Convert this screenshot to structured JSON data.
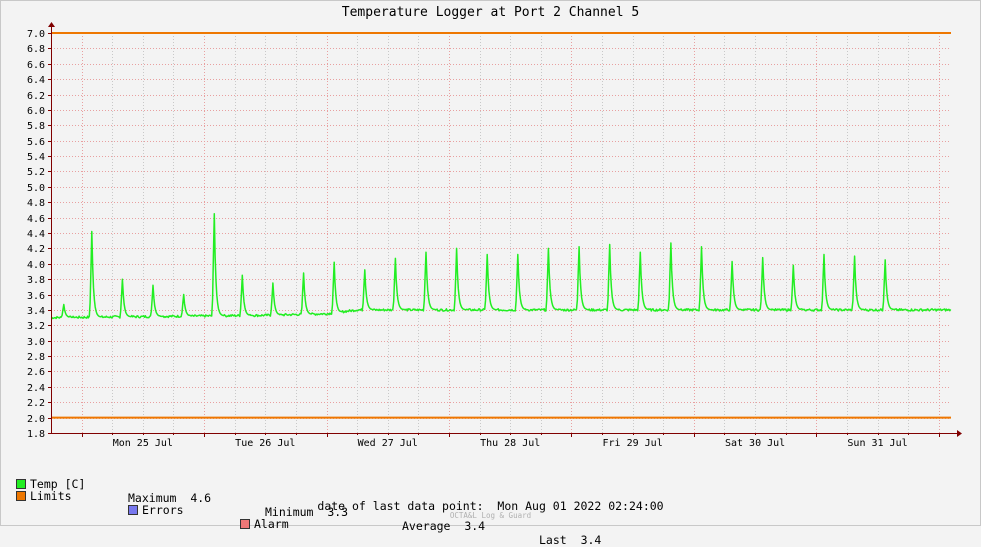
{
  "colors": {
    "series": "#22ee22",
    "limits": "#ee7700",
    "errors": "#7777ee",
    "alarm": "#ee7777",
    "grid_major": "#e8a0a0",
    "grid_minor": "#c8c8c8",
    "axis": "#800000",
    "background": "#f3f3f3"
  },
  "chart_data": {
    "type": "line",
    "title": "Temperature Logger at Port 2 Channel 5",
    "x_range": [
      "2022-07-24 18:00",
      "2022-08-01 02:24"
    ],
    "ylim": [
      1.8,
      7.0
    ],
    "y_ticks": [
      "1.8",
      "2.0",
      "2.2",
      "2.4",
      "2.6",
      "2.8",
      "3.0",
      "3.2",
      "3.4",
      "3.6",
      "3.8",
      "4.0",
      "4.2",
      "4.4",
      "4.6",
      "4.8",
      "5.0",
      "5.2",
      "5.4",
      "5.6",
      "5.8",
      "6.0",
      "6.2",
      "6.4",
      "6.6",
      "6.8",
      "7.0"
    ],
    "x_ticks": [
      "Mon 25 Jul",
      "Tue 26 Jul",
      "Wed 27 Jul",
      "Thu 28 Jul",
      "Fri 29 Jul",
      "Sat 30 Jul",
      "Sun 31 Jul"
    ],
    "limits": [
      7.0,
      2.0
    ],
    "grid": true,
    "series": [
      {
        "name": "Temp [C]",
        "baseline": [
          [
            "2022-07-24 18:00",
            3.3
          ],
          [
            "2022-07-26 12:00",
            3.33
          ],
          [
            "2022-07-27 00:00",
            3.35
          ],
          [
            "2022-07-27 06:00",
            3.4
          ],
          [
            "2022-08-01 02:24",
            3.4
          ]
        ],
        "peaks": [
          [
            "2022-07-24 20:30",
            3.47
          ],
          [
            "2022-07-25 02:00",
            4.42
          ],
          [
            "2022-07-25 08:00",
            3.8
          ],
          [
            "2022-07-25 14:00",
            3.72
          ],
          [
            "2022-07-25 20:00",
            3.6
          ],
          [
            "2022-07-26 02:00",
            4.65
          ],
          [
            "2022-07-26 07:30",
            3.85
          ],
          [
            "2022-07-26 13:30",
            3.75
          ],
          [
            "2022-07-26 19:30",
            3.88
          ],
          [
            "2022-07-27 01:30",
            4.02
          ],
          [
            "2022-07-27 07:30",
            3.92
          ],
          [
            "2022-07-27 13:30",
            4.07
          ],
          [
            "2022-07-27 19:30",
            4.15
          ],
          [
            "2022-07-28 01:30",
            4.2
          ],
          [
            "2022-07-28 07:30",
            4.12
          ],
          [
            "2022-07-28 13:30",
            4.12
          ],
          [
            "2022-07-28 19:30",
            4.2
          ],
          [
            "2022-07-29 01:30",
            4.22
          ],
          [
            "2022-07-29 07:30",
            4.25
          ],
          [
            "2022-07-29 13:30",
            4.15
          ],
          [
            "2022-07-29 19:30",
            4.27
          ],
          [
            "2022-07-30 01:30",
            4.22
          ],
          [
            "2022-07-30 07:30",
            4.03
          ],
          [
            "2022-07-30 13:30",
            4.08
          ],
          [
            "2022-07-30 19:30",
            3.98
          ],
          [
            "2022-07-31 01:30",
            4.12
          ],
          [
            "2022-07-31 07:30",
            4.1
          ],
          [
            "2022-07-31 13:30",
            4.05
          ]
        ]
      }
    ]
  },
  "legend": {
    "temp_label": "Temp [C]",
    "maximum_label": "Maximum",
    "maximum_value": "4.6",
    "minimum_label": "Minimum",
    "minimum_value": "3.3",
    "average_label": "Average",
    "average_value": "3.4",
    "last_label": "Last",
    "last_value": "3.4",
    "limits_label": "Limits",
    "errors_label": "Errors",
    "alarm_label": "Alarm"
  },
  "footer": {
    "last_point_label": "date of last data point:",
    "last_point_value": "Mon Aug 01 2022 02:24:00",
    "brand": "OCTA&L Log & Guard"
  }
}
